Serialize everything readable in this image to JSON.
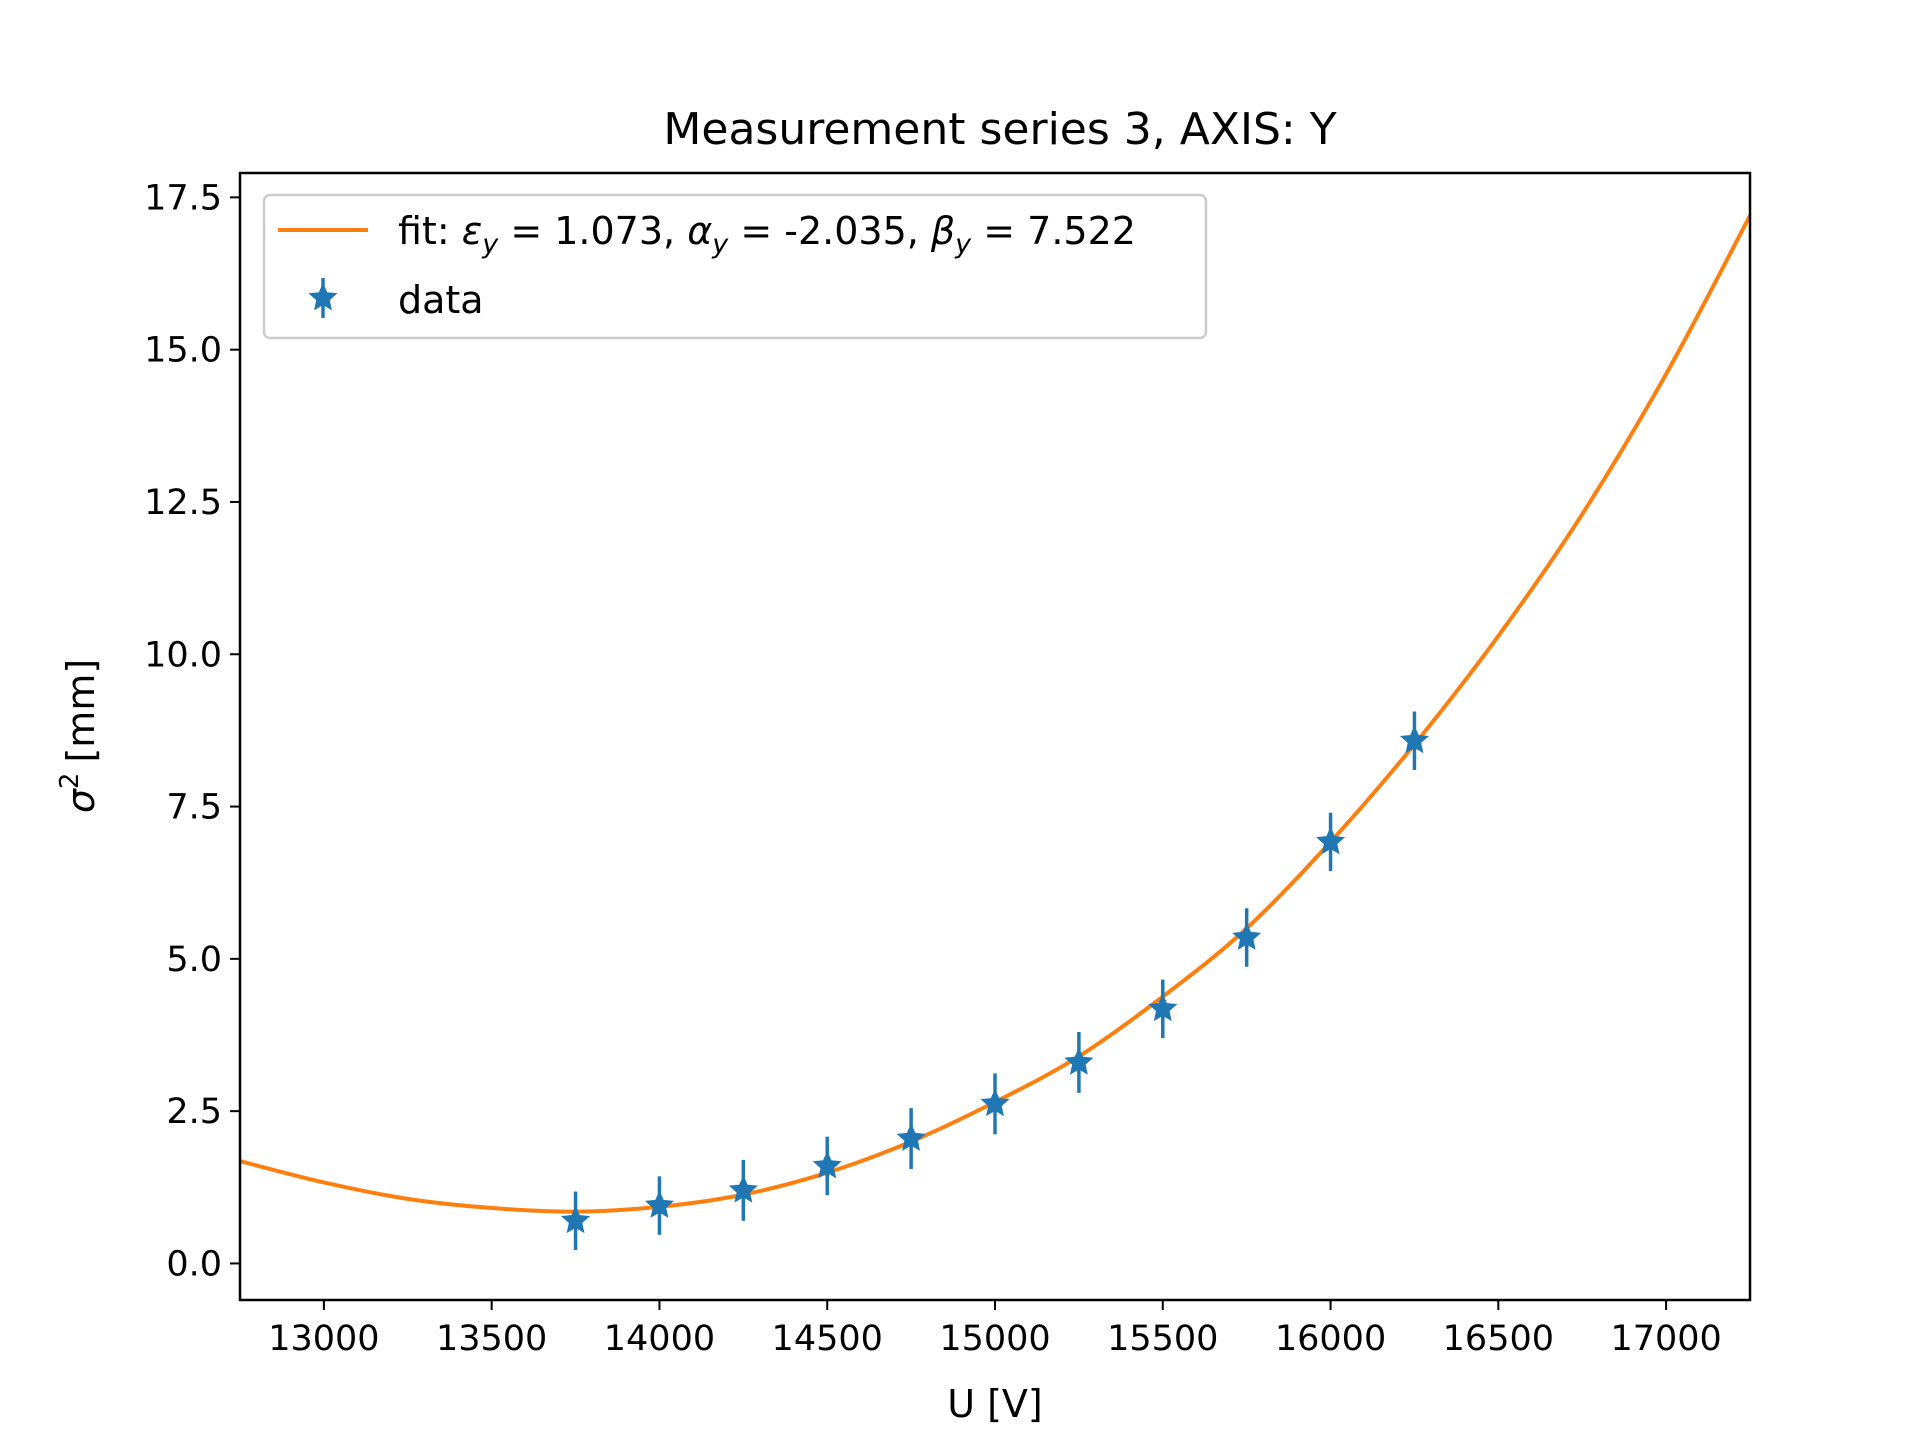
{
  "chart_data": {
    "type": "scatter",
    "title": "Measurement series 3, AXIS: Y",
    "xlabel": "U [V]",
    "ylabel": "[mm]",
    "ylabel_symbol": "σ",
    "ylabel_superscript": "2",
    "xlim": [
      12750,
      17250
    ],
    "ylim": [
      -0.6,
      17.9
    ],
    "xticks": [
      13000,
      13500,
      14000,
      14500,
      15000,
      15500,
      16000,
      16500,
      17000
    ],
    "xtick_labels": [
      "13000",
      "13500",
      "14000",
      "14500",
      "15000",
      "15500",
      "16000",
      "16500",
      "17000"
    ],
    "yticks": [
      0.0,
      2.5,
      5.0,
      7.5,
      10.0,
      12.5,
      15.0,
      17.5
    ],
    "ytick_labels": [
      "0.0",
      "2.5",
      "5.0",
      "7.5",
      "10.0",
      "12.5",
      "15.0",
      "17.5"
    ],
    "grid": false,
    "legend_position": "upper-left",
    "series": [
      {
        "name": "data",
        "kind": "errorbar",
        "marker": "star",
        "color": "#1f77b4",
        "x": [
          13750,
          14000,
          14250,
          14500,
          14750,
          15000,
          15250,
          15500,
          15750,
          16000,
          16250
        ],
        "y": [
          0.7,
          0.95,
          1.2,
          1.6,
          2.05,
          2.62,
          3.3,
          4.18,
          5.35,
          6.92,
          8.58
        ],
        "yerr": [
          0.48,
          0.48,
          0.5,
          0.48,
          0.5,
          0.5,
          0.5,
          0.48,
          0.48,
          0.48,
          0.48
        ]
      },
      {
        "kind": "line",
        "color": "#ff7f0e",
        "x": [
          12750,
          13000,
          13250,
          13500,
          13750,
          14000,
          14250,
          14500,
          14750,
          15000,
          15250,
          15500,
          15750,
          16000,
          16250,
          16500,
          16750,
          17000,
          17250
        ],
        "y": [
          1.68,
          1.33,
          1.06,
          0.91,
          0.85,
          0.93,
          1.13,
          1.49,
          2.0,
          2.65,
          3.4,
          4.38,
          5.5,
          6.92,
          8.52,
          10.3,
          12.3,
          14.6,
          17.2
        ]
      }
    ],
    "legend": {
      "fit_text_parts": [
        {
          "t": "fit: ",
          "i": false
        },
        {
          "t": "ε",
          "i": true
        },
        {
          "t": "y",
          "i": true,
          "sub": true
        },
        {
          "t": " = 1.073, ",
          "i": false
        },
        {
          "t": "α",
          "i": true
        },
        {
          "t": "y",
          "i": true,
          "sub": true
        },
        {
          "t": " = -2.035, ",
          "i": false
        },
        {
          "t": "β",
          "i": true
        },
        {
          "t": "y",
          "i": true,
          "sub": true
        },
        {
          "t": " = 7.522",
          "i": false
        }
      ],
      "data_label": "data"
    }
  }
}
